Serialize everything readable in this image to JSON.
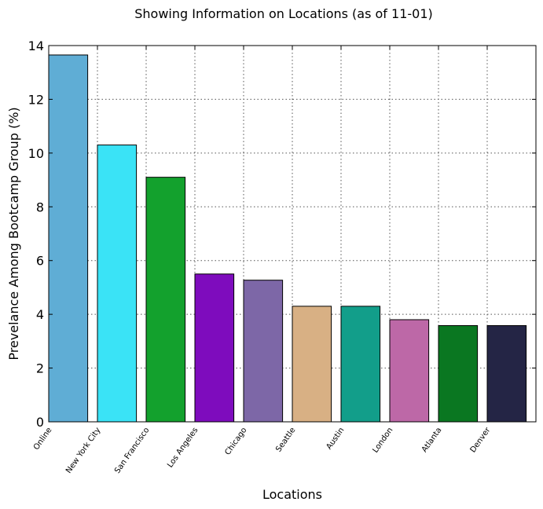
{
  "chart_data": {
    "type": "bar",
    "title": "Showing Information on Locations (as of 11-01)",
    "xlabel": "Locations",
    "ylabel": "Prevelance Among Bootcamp Group (%)",
    "ylim": [
      0,
      14
    ],
    "yticks": [
      "0",
      "2",
      "4",
      "6",
      "8",
      "10",
      "12",
      "14"
    ],
    "grid": true,
    "categories": [
      "Online",
      "New York City",
      "San Francisco",
      "Los Angeles",
      "Chicago",
      "Seattle",
      "Austin",
      "London",
      "Atlanta",
      "Denver"
    ],
    "values": [
      13.65,
      10.3,
      9.1,
      5.5,
      5.27,
      4.3,
      4.3,
      3.8,
      3.58,
      3.58
    ],
    "colors": [
      "#5fadd5",
      "#3ae3f6",
      "#13a12d",
      "#7e0cbd",
      "#7d67a7",
      "#d8b084",
      "#129e8a",
      "#bd68a7",
      "#0a7721",
      "#242545"
    ]
  }
}
